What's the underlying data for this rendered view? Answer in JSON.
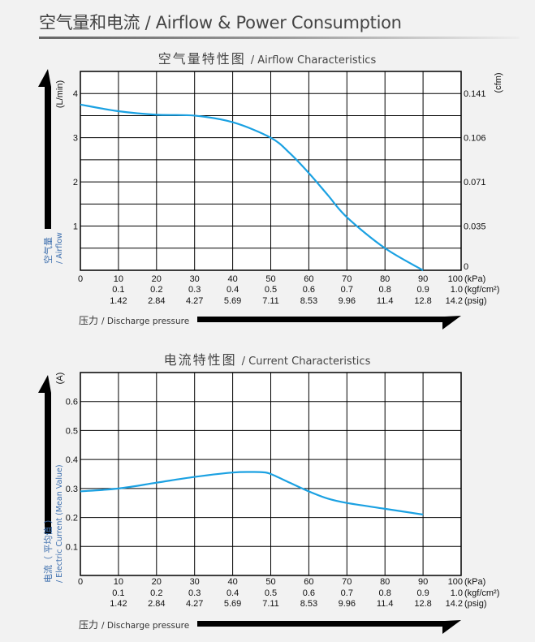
{
  "page": {
    "title": "空气量和电流 / Airflow & Power Consumption"
  },
  "colors": {
    "curve": "#1ba1e2",
    "axis_label": "#3d6fae",
    "grid": "#000000"
  },
  "chart_data": [
    {
      "type": "line",
      "title_cn": "空气量特性图",
      "title_en": "/ Airflow Characteristics",
      "ylabel_unit": "(L/min)",
      "ylabel_cn": "空气量",
      "ylabel_en": "/ Airflow",
      "y2label_unit": "(cfm)",
      "xlabel_cn": "压力",
      "xlabel_en": "/ Discharge pressure",
      "xlim": [
        0,
        100
      ],
      "ylim": [
        0,
        4.5
      ],
      "grid": true,
      "y_ticks": [
        1,
        2,
        3,
        4
      ],
      "y2_ticks": [
        {
          "y": 0,
          "label": "0"
        },
        {
          "y": 1,
          "label": "0.035"
        },
        {
          "y": 2,
          "label": "0.071"
        },
        {
          "y": 3,
          "label": "0.106"
        },
        {
          "y": 4,
          "label": "0.141"
        }
      ],
      "x_tick_rows": [
        {
          "unit": "(kPa)",
          "labels": [
            "0",
            "10",
            "20",
            "30",
            "40",
            "50",
            "60",
            "70",
            "80",
            "90",
            "100"
          ]
        },
        {
          "unit": "(kgf/cm²)",
          "labels": [
            "",
            "0.1",
            "0.2",
            "0.3",
            "0.4",
            "0.5",
            "0.6",
            "0.7",
            "0.8",
            "0.9",
            "1.0"
          ]
        },
        {
          "unit": "(psig)",
          "labels": [
            "",
            "1.42",
            "2.84",
            "4.27",
            "5.69",
            "7.11",
            "8.53",
            "9.96",
            "11.4",
            "12.8",
            "14.2"
          ]
        }
      ],
      "series": [
        {
          "x": [
            0,
            10,
            20,
            30,
            40,
            50,
            55,
            60,
            65,
            70,
            80,
            90
          ],
          "y": [
            3.75,
            3.6,
            3.52,
            3.5,
            3.35,
            3.0,
            2.65,
            2.2,
            1.7,
            1.2,
            0.5,
            0
          ]
        }
      ]
    },
    {
      "type": "line",
      "title_cn": "电流特性图",
      "title_en": "/ Current Characteristics",
      "ylabel_unit": "(A)",
      "ylabel_cn": "电流（ 平均值 ）",
      "ylabel_en": "/ Electric Current (Mean Value)",
      "xlabel_cn": "压力",
      "xlabel_en": "/ Discharge pressure",
      "xlim": [
        0,
        100
      ],
      "ylim": [
        0,
        0.7
      ],
      "grid": true,
      "y_ticks": [
        0.1,
        0.2,
        0.3,
        0.4,
        0.5,
        0.6
      ],
      "x_tick_rows": [
        {
          "unit": "(kPa)",
          "labels": [
            "0",
            "10",
            "20",
            "30",
            "40",
            "50",
            "60",
            "70",
            "80",
            "90",
            "100"
          ]
        },
        {
          "unit": "(kgf/cm²)",
          "labels": [
            "",
            "0.1",
            "0.2",
            "0.3",
            "0.4",
            "0.5",
            "0.6",
            "0.7",
            "0.8",
            "0.9",
            "1.0"
          ]
        },
        {
          "unit": "(psig)",
          "labels": [
            "",
            "1.42",
            "2.84",
            "4.27",
            "5.69",
            "7.11",
            "8.53",
            "9.96",
            "11.4",
            "12.8",
            "14.2"
          ]
        }
      ],
      "series": [
        {
          "x": [
            0,
            10,
            20,
            30,
            40,
            45,
            48,
            50,
            55,
            60,
            65,
            70,
            80,
            90
          ],
          "y": [
            0.29,
            0.3,
            0.32,
            0.34,
            0.355,
            0.357,
            0.356,
            0.35,
            0.32,
            0.29,
            0.265,
            0.25,
            0.23,
            0.21
          ]
        }
      ]
    }
  ]
}
